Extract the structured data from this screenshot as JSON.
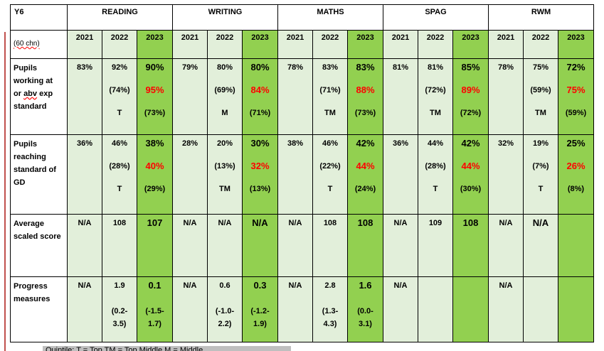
{
  "table": {
    "corner": "Y6",
    "cohort": "(60 chn)",
    "subjects": [
      "READING",
      "WRITING",
      "MATHS",
      "SPAG",
      "RWM"
    ],
    "years": [
      "2021",
      "2022",
      "2023"
    ],
    "rows": [
      {
        "label": [
          "Pupils",
          "working at",
          "or  abv exp",
          "standard"
        ],
        "cells": [
          [
            "83%"
          ],
          [
            "92%",
            "(74%)",
            "T"
          ],
          [
            "90%",
            "95%",
            "(73%)"
          ],
          [
            "79%"
          ],
          [
            "80%",
            "(69%)",
            "M"
          ],
          [
            "80%",
            "84%",
            "(71%)"
          ],
          [
            "78%"
          ],
          [
            "83%",
            "(71%)",
            "TM"
          ],
          [
            "83%",
            "88%",
            "(73%)"
          ],
          [
            "81%"
          ],
          [
            "81%",
            "(72%)",
            "TM"
          ],
          [
            "85%",
            "89%",
            "(72%)"
          ],
          [
            "78%"
          ],
          [
            "75%",
            "(59%)",
            "TM"
          ],
          [
            "72%",
            "75%",
            "(59%)"
          ]
        ]
      },
      {
        "label": [
          "Pupils",
          "reaching",
          "standard  of",
          "GD"
        ],
        "cells": [
          [
            "36%"
          ],
          [
            "46%",
            "(28%)",
            "T"
          ],
          [
            "38%",
            "40%",
            "(29%)"
          ],
          [
            "28%"
          ],
          [
            "20%",
            "(13%)",
            "TM"
          ],
          [
            "30%",
            "32%",
            "(13%)"
          ],
          [
            "38%"
          ],
          [
            "46%",
            "(22%)",
            "T"
          ],
          [
            "42%",
            "44%",
            "(24%)"
          ],
          [
            "36%"
          ],
          [
            "44%",
            "(28%)",
            "T"
          ],
          [
            "42%",
            "44%",
            "(30%)"
          ],
          [
            "32%"
          ],
          [
            "19%",
            "(7%)",
            "T"
          ],
          [
            "25%",
            "26%",
            "(8%)"
          ]
        ]
      },
      {
        "label": [
          "Average",
          "scaled score"
        ],
        "cells": [
          [
            "N/A"
          ],
          [
            "108"
          ],
          [
            "107"
          ],
          [
            "N/A"
          ],
          [
            "N/A"
          ],
          [
            "N/A"
          ],
          [
            "N/A"
          ],
          [
            "108"
          ],
          [
            "108"
          ],
          [
            "N/A"
          ],
          [
            "109"
          ],
          [
            "108"
          ],
          [
            "N/A"
          ],
          [
            "N/A"
          ],
          []
        ]
      },
      {
        "label": [
          "Progress",
          "measures"
        ],
        "cells": [
          [
            "N/A"
          ],
          [
            "1.9",
            "",
            "(0.2-",
            "3.5)"
          ],
          [
            "0.1",
            "",
            "(-1.5-",
            "1.7)"
          ],
          [
            "N/A"
          ],
          [
            "0.6",
            "",
            "(-1.0-",
            "2.2)"
          ],
          [
            "0.3",
            "",
            "(-1.2-",
            "1.9)"
          ],
          [
            "N/A"
          ],
          [
            "2.8",
            "",
            "(1.3-",
            "4.3)"
          ],
          [
            "1.6",
            "",
            "(0.0-",
            "3.1)"
          ],
          [
            "N/A"
          ],
          [],
          [],
          [
            "N/A"
          ],
          [],
          []
        ]
      }
    ]
  },
  "footer": "Quintile: T = Top    TM = Top Middle    M = Middle"
}
